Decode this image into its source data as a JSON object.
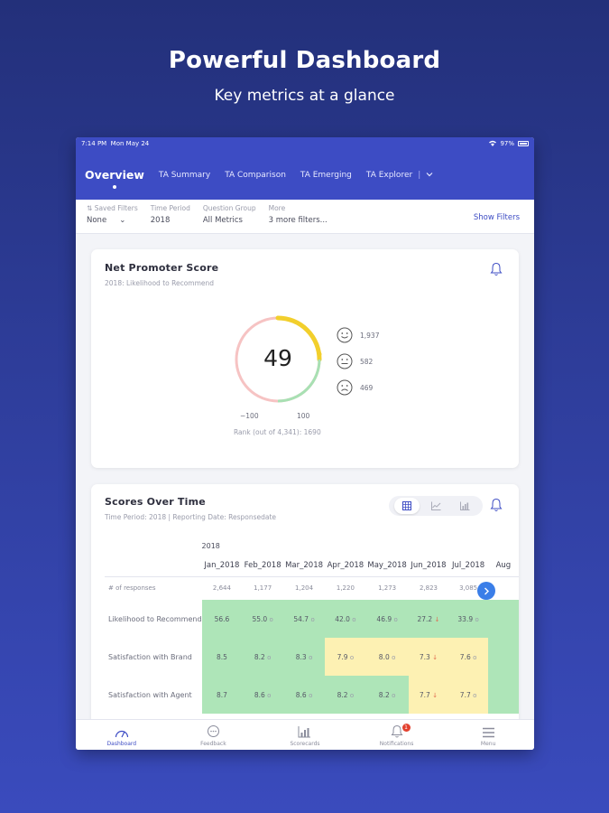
{
  "promo": {
    "title": "Powerful Dashboard",
    "subtitle": "Key metrics at a glance"
  },
  "statusbar": {
    "time": "7:14 PM",
    "date": "Mon May 24",
    "battery": "97%"
  },
  "nav": {
    "tabs": [
      {
        "label": "Overview",
        "active": true
      },
      {
        "label": "TA Summary"
      },
      {
        "label": "TA Comparison"
      },
      {
        "label": "TA Emerging"
      },
      {
        "label": "TA Explorer"
      }
    ],
    "divider": "|"
  },
  "filters": {
    "saved": {
      "label": "Saved Filters",
      "value": "None"
    },
    "time_period": {
      "label": "Time Period",
      "value": "2018"
    },
    "question_group": {
      "label": "Question Group",
      "value": "All Metrics"
    },
    "more": {
      "label": "More",
      "value": "3 more filters..."
    },
    "show_filters": "Show Filters"
  },
  "nps": {
    "title": "Net Promoter Score",
    "subtitle": "2018: Likelihood to Recommend",
    "score": "49",
    "min": "−100",
    "max": "100",
    "rank": "Rank (out of 4,341): 1690",
    "promoters": "1,937",
    "passives": "582",
    "detractors": "469",
    "colors": {
      "promoter": "#f2cf2c",
      "passive": "#a8e0b3",
      "detractor": "#f6c3c3"
    }
  },
  "scores": {
    "title": "Scores Over Time",
    "subtitle": "Time Period: 2018 | Reporting Date: Responsedate",
    "year": "2018",
    "months": [
      "Jan_2018",
      "Feb_2018",
      "Mar_2018",
      "Apr_2018",
      "May_2018",
      "Jun_2018",
      "Jul_2018",
      "Aug"
    ],
    "responses_label": "# of responses",
    "responses": [
      "2,644",
      "1,177",
      "1,204",
      "1,220",
      "1,273",
      "2,823",
      "3,085",
      ""
    ],
    "rows": [
      {
        "label": "Likelihood to Recommend",
        "cells": [
          {
            "v": "56.6",
            "c": "g",
            "a": ""
          },
          {
            "v": "55.0",
            "c": "g",
            "a": "o"
          },
          {
            "v": "54.7",
            "c": "g",
            "a": "o"
          },
          {
            "v": "42.0",
            "c": "g",
            "a": "o"
          },
          {
            "v": "46.9",
            "c": "g",
            "a": "o"
          },
          {
            "v": "27.2",
            "c": "g",
            "a": "↓"
          },
          {
            "v": "33.9",
            "c": "g",
            "a": "o"
          },
          {
            "v": "",
            "c": "g",
            "a": ""
          }
        ]
      },
      {
        "label": "Satisfaction with Brand",
        "cells": [
          {
            "v": "8.5",
            "c": "g",
            "a": ""
          },
          {
            "v": "8.2",
            "c": "g",
            "a": "o"
          },
          {
            "v": "8.3",
            "c": "g",
            "a": "o"
          },
          {
            "v": "7.9",
            "c": "y",
            "a": "o"
          },
          {
            "v": "8.0",
            "c": "y",
            "a": "o"
          },
          {
            "v": "7.3",
            "c": "y",
            "a": "↓"
          },
          {
            "v": "7.6",
            "c": "y",
            "a": "o"
          },
          {
            "v": "",
            "c": "g",
            "a": ""
          }
        ]
      },
      {
        "label": "Satisfaction with Agent",
        "cells": [
          {
            "v": "8.7",
            "c": "g",
            "a": ""
          },
          {
            "v": "8.6",
            "c": "g",
            "a": "o"
          },
          {
            "v": "8.6",
            "c": "g",
            "a": "o"
          },
          {
            "v": "8.2",
            "c": "g",
            "a": "o"
          },
          {
            "v": "8.2",
            "c": "g",
            "a": "o"
          },
          {
            "v": "7.7",
            "c": "y",
            "a": "↓"
          },
          {
            "v": "7.7",
            "c": "y",
            "a": "o"
          },
          {
            "v": "",
            "c": "g",
            "a": ""
          }
        ]
      }
    ]
  },
  "bottom_nav": [
    {
      "label": "Dashboard",
      "icon": "gauge-icon",
      "active": true
    },
    {
      "label": "Feedback",
      "icon": "chat-icon"
    },
    {
      "label": "Scorecards",
      "icon": "bar-chart-icon"
    },
    {
      "label": "Notifications",
      "icon": "bell-icon",
      "badge": "1"
    },
    {
      "label": "Menu",
      "icon": "menu-icon"
    }
  ]
}
